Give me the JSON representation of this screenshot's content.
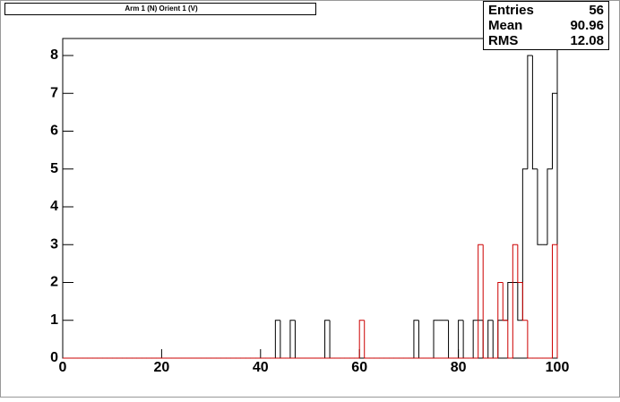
{
  "chart_data": {
    "type": "histogram",
    "title": "Arm 1 (N) Orient 1 (V)",
    "bins": [
      0,
      1,
      2,
      3,
      4,
      5,
      6,
      7,
      8,
      9,
      10,
      11,
      12,
      13,
      14,
      15,
      16,
      17,
      18,
      19,
      20,
      21,
      22,
      23,
      24,
      25,
      26,
      27,
      28,
      29,
      30,
      31,
      32,
      33,
      34,
      35,
      36,
      37,
      38,
      39,
      40,
      41,
      42,
      43,
      44,
      45,
      46,
      47,
      48,
      49,
      50,
      51,
      52,
      53,
      54,
      55,
      56,
      57,
      58,
      59,
      60,
      61,
      62,
      63,
      64,
      65,
      66,
      67,
      68,
      69,
      70,
      71,
      72,
      73,
      74,
      75,
      76,
      77,
      78,
      79,
      80,
      81,
      82,
      83,
      84,
      85,
      86,
      87,
      88,
      89,
      90,
      91,
      92,
      93,
      94,
      95,
      96,
      97,
      98,
      99,
      100
    ],
    "series": [
      {
        "color": "#000000",
        "values": [
          0,
          0,
          0,
          0,
          0,
          0,
          0,
          0,
          0,
          0,
          0,
          0,
          0,
          0,
          0,
          0,
          0,
          0,
          0,
          0,
          0,
          0,
          0,
          0,
          0,
          0,
          0,
          0,
          0,
          0,
          0,
          0,
          0,
          0,
          0,
          0,
          0,
          0,
          0,
          0,
          0,
          0,
          0,
          1,
          0,
          0,
          1,
          0,
          0,
          0,
          0,
          0,
          0,
          1,
          0,
          0,
          0,
          0,
          0,
          0,
          0,
          0,
          0,
          0,
          0,
          0,
          0,
          0,
          0,
          0,
          0,
          1,
          0,
          0,
          0,
          1,
          1,
          1,
          0,
          0,
          1,
          0,
          0,
          1,
          1,
          0,
          1,
          0,
          1,
          1,
          2,
          2,
          1,
          5,
          8,
          5,
          3,
          3,
          5,
          7
        ]
      },
      {
        "color": "#cc0000",
        "values": [
          0,
          0,
          0,
          0,
          0,
          0,
          0,
          0,
          0,
          0,
          0,
          0,
          0,
          0,
          0,
          0,
          0,
          0,
          0,
          0,
          0,
          0,
          0,
          0,
          0,
          0,
          0,
          0,
          0,
          0,
          0,
          0,
          0,
          0,
          0,
          0,
          0,
          0,
          0,
          0,
          0,
          0,
          0,
          0,
          0,
          0,
          0,
          0,
          0,
          0,
          0,
          0,
          0,
          0,
          0,
          0,
          0,
          0,
          0,
          0,
          1,
          0,
          0,
          0,
          0,
          0,
          0,
          0,
          0,
          0,
          0,
          0,
          0,
          0,
          0,
          0,
          0,
          0,
          0,
          0,
          0,
          0,
          0,
          0,
          3,
          0,
          0,
          0,
          2,
          1,
          0,
          3,
          2,
          1,
          0,
          0,
          0,
          0,
          0,
          3
        ]
      }
    ],
    "xlim": [
      0,
      100
    ],
    "xticks": [
      0,
      20,
      40,
      60,
      80,
      100
    ],
    "ylim": [
      0,
      8.45
    ],
    "yticks": [
      0,
      1,
      2,
      3,
      4,
      5,
      6,
      7,
      8
    ],
    "stats": [
      {
        "label": "Entries",
        "value": "56"
      },
      {
        "label": "Mean",
        "value": "90.96"
      },
      {
        "label": "RMS",
        "value": "12.08"
      }
    ]
  }
}
